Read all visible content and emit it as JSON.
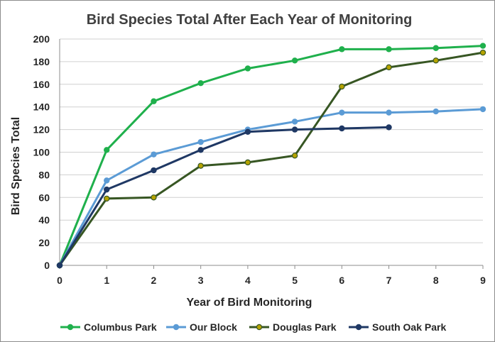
{
  "chart_data": {
    "type": "line",
    "title": "Bird Species Total After Each Year of Monitoring",
    "xlabel": "Year of Bird Monitoring",
    "ylabel": "Bird Species Total",
    "x": [
      0,
      1,
      2,
      3,
      4,
      5,
      6,
      7,
      8,
      9
    ],
    "xlim": [
      0,
      9
    ],
    "ylim": [
      0,
      200
    ],
    "yticks": [
      0,
      20,
      40,
      60,
      80,
      100,
      120,
      140,
      160,
      180,
      200
    ],
    "grid": "horizontal",
    "legend": "bottom",
    "series": [
      {
        "name": "Columbus Park",
        "color": "#1fb04c",
        "marker": "#1fb04c",
        "x": [
          0,
          1,
          2,
          3,
          4,
          5,
          6,
          7,
          8,
          9
        ],
        "values": [
          0,
          102,
          145,
          161,
          174,
          181,
          191,
          191,
          192,
          194
        ]
      },
      {
        "name": "Our Block",
        "color": "#5b9bd5",
        "marker": "#5b9bd5",
        "x": [
          0,
          1,
          2,
          3,
          4,
          5,
          6,
          7,
          8,
          9
        ],
        "values": [
          0,
          75,
          98,
          109,
          120,
          127,
          135,
          135,
          136,
          138
        ]
      },
      {
        "name": "Douglas Park",
        "color": "#375623",
        "marker": "#b5a300",
        "x": [
          0,
          1,
          2,
          3,
          4,
          5,
          6,
          7,
          8,
          9
        ],
        "values": [
          0,
          59,
          60,
          88,
          91,
          97,
          158,
          175,
          181,
          188
        ]
      },
      {
        "name": "South Oak Park",
        "color": "#1f3864",
        "marker": "#1f3864",
        "x": [
          0,
          1,
          2,
          3,
          4,
          5,
          6,
          7
        ],
        "values": [
          0,
          67,
          84,
          102,
          118,
          120,
          121,
          122
        ]
      }
    ]
  }
}
